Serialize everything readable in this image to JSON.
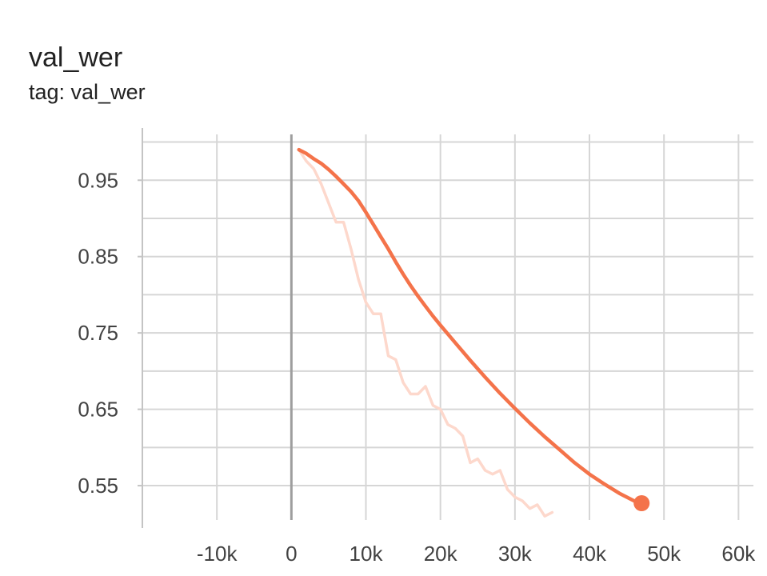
{
  "header": {
    "title": "val_wer",
    "subtitle": "tag: val_wer"
  },
  "chart_data": {
    "type": "line",
    "title": "val_wer",
    "subtitle": "tag: val_wer",
    "xlabel": "",
    "ylabel": "",
    "xlim": [
      -20000,
      62000
    ],
    "ylim": [
      0.505,
      1.01
    ],
    "grid": true,
    "x_ticks": [
      -10000,
      0,
      10000,
      20000,
      30000,
      40000,
      50000,
      60000
    ],
    "x_tick_labels": [
      "-10k",
      "0",
      "10k",
      "20k",
      "30k",
      "40k",
      "50k",
      "60k"
    ],
    "y_ticks": [
      0.55,
      0.65,
      0.75,
      0.85,
      0.95
    ],
    "y_tick_labels": [
      "0.55",
      "0.65",
      "0.75",
      "0.85",
      "0.95"
    ],
    "series": [
      {
        "role": "raw",
        "color": "#fdd8cc",
        "x": [
          1000,
          2000,
          3000,
          4000,
          5000,
          6000,
          7000,
          8000,
          9000,
          10000,
          11000,
          12000,
          13000,
          14000,
          15000,
          16000,
          17000,
          18000,
          19000,
          20000,
          21000,
          22000,
          23000,
          24000,
          25000,
          26000,
          27000,
          28000,
          29000,
          30000,
          31000,
          32000,
          33000,
          34000,
          35000
        ],
        "y": [
          0.99,
          0.975,
          0.965,
          0.945,
          0.92,
          0.895,
          0.895,
          0.86,
          0.82,
          0.79,
          0.775,
          0.775,
          0.72,
          0.715,
          0.685,
          0.67,
          0.67,
          0.68,
          0.655,
          0.65,
          0.63,
          0.625,
          0.615,
          0.58,
          0.585,
          0.57,
          0.565,
          0.57,
          0.545,
          0.535,
          0.53,
          0.52,
          0.525,
          0.51,
          0.515
        ]
      },
      {
        "role": "smoothed",
        "color": "#f4734a",
        "x": [
          1000,
          2000,
          3000,
          4000,
          5000,
          6000,
          7000,
          8000,
          9000,
          10000,
          11000,
          12000,
          13000,
          14000,
          15000,
          16000,
          17000,
          18000,
          19000,
          20000,
          22000,
          24000,
          26000,
          28000,
          30000,
          32000,
          34000,
          36000,
          38000,
          40000,
          42000,
          44000,
          46000,
          47000
        ],
        "y": [
          0.99,
          0.985,
          0.978,
          0.972,
          0.964,
          0.955,
          0.945,
          0.935,
          0.923,
          0.908,
          0.892,
          0.876,
          0.86,
          0.843,
          0.827,
          0.812,
          0.798,
          0.785,
          0.772,
          0.76,
          0.737,
          0.714,
          0.692,
          0.671,
          0.651,
          0.632,
          0.614,
          0.597,
          0.58,
          0.565,
          0.552,
          0.54,
          0.53,
          0.527
        ]
      }
    ]
  }
}
